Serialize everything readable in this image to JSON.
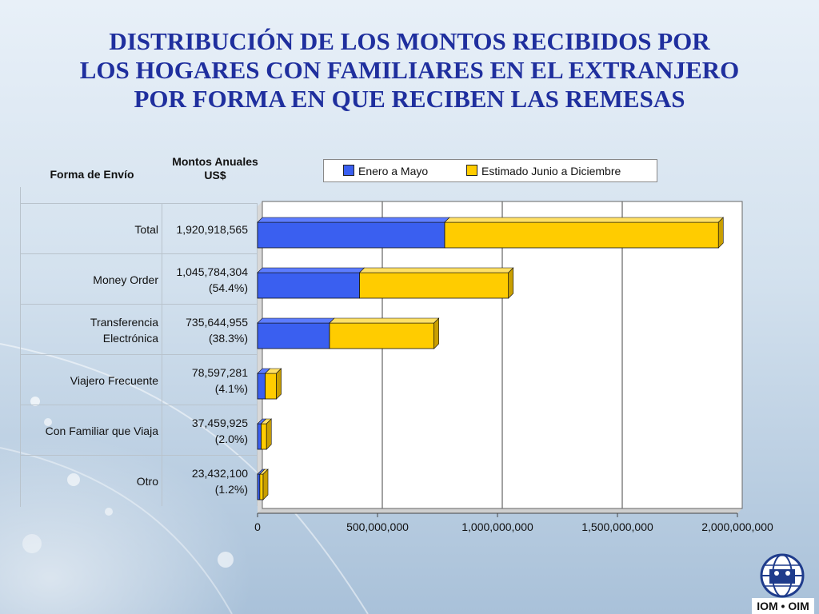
{
  "title_lines": [
    "DISTRIBUCIÓN DE LOS MONTOS RECIBIDOS POR",
    "LOS HOGARES CON FAMILIARES EN EL EXTRANJERO",
    "POR FORMA EN QUE RECIBEN LAS REMESAS"
  ],
  "table": {
    "header_forma": "Forma de Envío",
    "header_montos_line1": "Montos Anuales",
    "header_montos_line2": "US$",
    "rows": [
      {
        "label_lines": [
          "Total"
        ],
        "amount": "1,920,918,565",
        "percent": ""
      },
      {
        "label_lines": [
          "Money Order"
        ],
        "amount": "1,045,784,304",
        "percent": "(54.4%)"
      },
      {
        "label_lines": [
          "Transferencia",
          "Electrónica"
        ],
        "amount": "735,644,955",
        "percent": "(38.3%)"
      },
      {
        "label_lines": [
          "Viajero Frecuente"
        ],
        "amount": "78,597,281",
        "percent": "(4.1%)"
      },
      {
        "label_lines": [
          "Con Familiar que Viaja"
        ],
        "amount": "37,459,925",
        "percent": "(2.0%)"
      },
      {
        "label_lines": [
          "Otro"
        ],
        "amount": "23,432,100",
        "percent": "(1.2%)"
      }
    ]
  },
  "logo_text": "IOM • OIM",
  "colors": {
    "series1": "#3a5ff0",
    "series2": "#ffcc00",
    "title": "#1f2f9e"
  },
  "chart_data": {
    "type": "bar",
    "orientation": "horizontal",
    "stacked": true,
    "categories": [
      "Total",
      "Money Order",
      "Transferencia Electrónica",
      "Viajero Frecuente",
      "Con Familiar que Viaja",
      "Otro"
    ],
    "series": [
      {
        "name": "Enero a Mayo",
        "values": [
          780000000,
          425000000,
          300000000,
          32000000,
          15000000,
          9500000
        ]
      },
      {
        "name": "Estimado Junio a Diciembre",
        "values": [
          1140918565,
          620784304,
          435644955,
          46597281,
          22459925,
          13932100
        ]
      }
    ],
    "xlim": [
      0,
      2000000000
    ],
    "xticks": [
      0,
      500000000,
      1000000000,
      1500000000,
      2000000000
    ],
    "xtick_labels": [
      "0",
      "500,000,000",
      "1,000,000,000",
      "1,500,000,000",
      "2,000,000,000"
    ],
    "grid": true,
    "legend_position": "top"
  }
}
